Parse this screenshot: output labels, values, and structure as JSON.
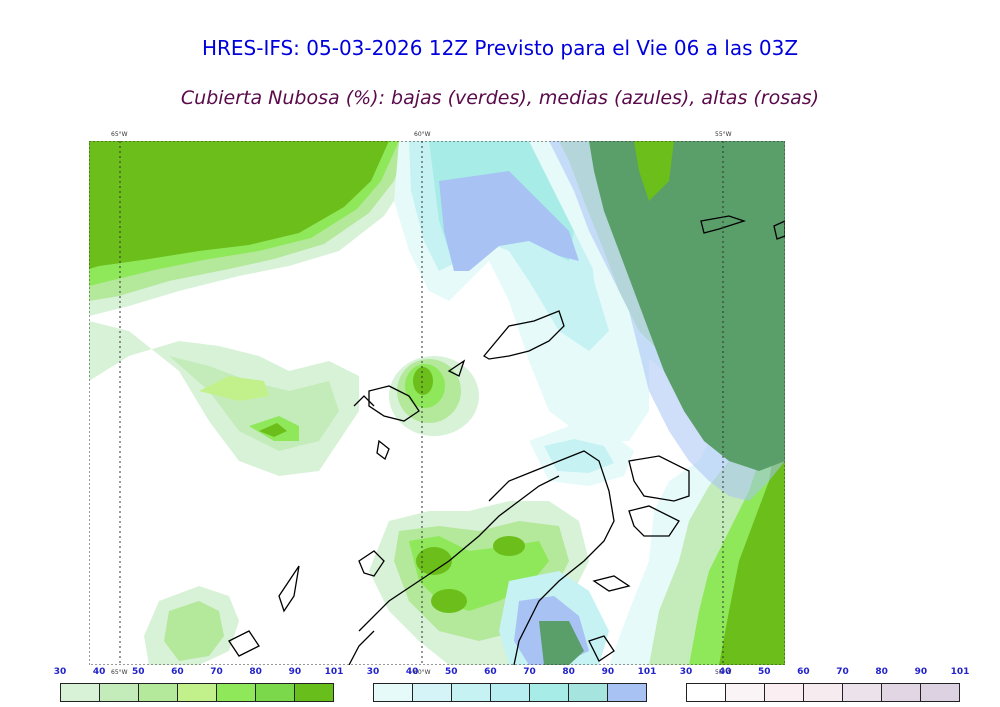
{
  "title": "HRES-IFS: 05-03-2026 12Z Previsto para el Vie 06 a las 03Z",
  "subtitle": "Cubierta Nubosa (%): bajas (verdes), medias (azules), altas (rosas)",
  "map": {
    "longitude_labels": [
      "65°W",
      "60°W",
      "55°W"
    ],
    "low_cloud_color": "#6cbf1a",
    "mid_cloud_color": "#a8c0f0",
    "high_cloud_color": "#5a9e6a"
  },
  "colorbars": [
    {
      "name": "bajas",
      "ticks": [
        "30",
        "40",
        "50",
        "60",
        "70",
        "80",
        "90",
        "101"
      ],
      "colors": [
        "#d8f2d8",
        "#c4ecba",
        "#b4e89a",
        "#c2f08a",
        "#8ee85a",
        "#7ad84a",
        "#68be1a"
      ]
    },
    {
      "name": "medias",
      "ticks": [
        "30",
        "40",
        "50",
        "60",
        "70",
        "80",
        "90",
        "101"
      ],
      "colors": [
        "#e6fafa",
        "#d4f4f8",
        "#c6f2f4",
        "#b6eef2",
        "#a8ece8",
        "#a6e4e0",
        "#a8c2f4"
      ]
    },
    {
      "name": "altas",
      "ticks": [
        "30",
        "40",
        "50",
        "60",
        "70",
        "80",
        "90",
        "101"
      ],
      "colors": [
        "#ffffff",
        "#fbf4f6",
        "#fbeef2",
        "#f6ecf0",
        "#ece2ec",
        "#e2d6e4",
        "#dcd2e2"
      ]
    }
  ]
}
